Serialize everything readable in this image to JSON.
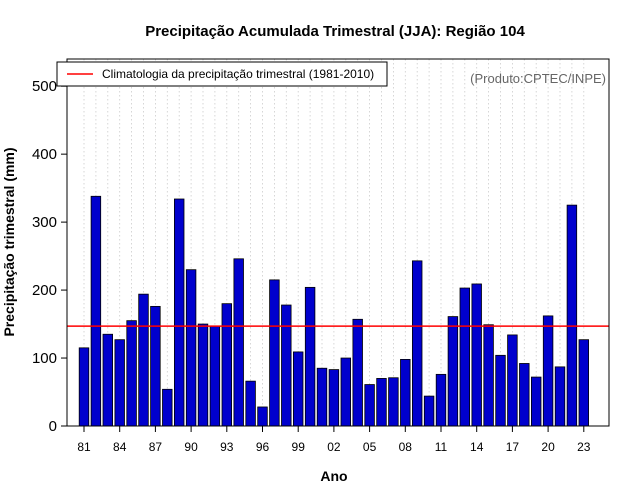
{
  "chart_data": {
    "type": "bar",
    "title": "Precipitação Acumulada Trimestral (JJA): Região 104",
    "xlabel": "Ano",
    "ylabel": "Precipitação trimestral (mm)",
    "ylim": [
      0,
      540
    ],
    "yticks": [
      0,
      100,
      200,
      300,
      400,
      500
    ],
    "categories": [
      "81",
      "82",
      "83",
      "84",
      "85",
      "86",
      "87",
      "88",
      "89",
      "90",
      "91",
      "92",
      "93",
      "94",
      "95",
      "96",
      "97",
      "98",
      "99",
      "00",
      "01",
      "02",
      "03",
      "04",
      "05",
      "06",
      "07",
      "08",
      "09",
      "10",
      "11",
      "12",
      "13",
      "14",
      "15",
      "16",
      "17",
      "18",
      "19",
      "20",
      "21",
      "22",
      "23"
    ],
    "xtick_labels": [
      "81",
      "84",
      "87",
      "90",
      "93",
      "96",
      "99",
      "02",
      "05",
      "08",
      "11",
      "14",
      "17",
      "20",
      "23"
    ],
    "values": [
      115,
      338,
      135,
      127,
      155,
      194,
      176,
      54,
      334,
      230,
      150,
      147,
      180,
      246,
      66,
      28,
      215,
      178,
      109,
      204,
      85,
      83,
      100,
      157,
      61,
      70,
      71,
      98,
      243,
      44,
      76,
      161,
      203,
      209,
      149,
      104,
      134,
      92,
      72,
      162,
      87,
      325,
      127
    ],
    "bar_color": "#0000cd",
    "climatology": {
      "value": 147,
      "label": "Climatologia da precipitação trimestral (1981-2010)",
      "color": "#ff0000"
    },
    "legend_position": "top-left",
    "credit": "(Produto:CPTEC/INPE)",
    "grid": "vertical-dotted"
  }
}
